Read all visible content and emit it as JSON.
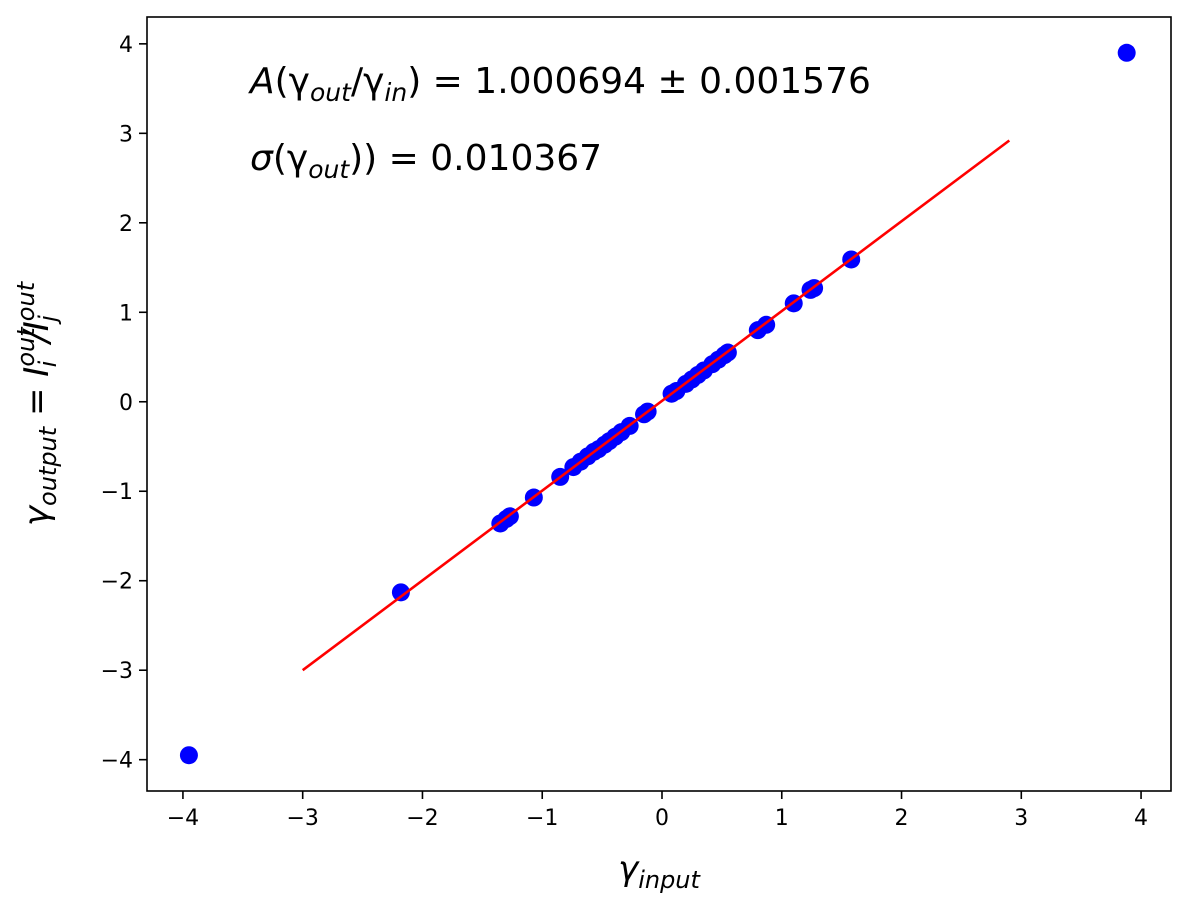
{
  "chart_data": {
    "type": "scatter",
    "xlabel": {
      "main": "γ",
      "sub": "input"
    },
    "ylabel": {
      "main": "γ",
      "sub": "output",
      "rest": " = I",
      "sup1": "out",
      "sub1": "i",
      "mid": "/I",
      "sup2": "out",
      "sub2": "j"
    },
    "xlim": [
      -4.3,
      4.25
    ],
    "ylim": [
      -4.35,
      4.3
    ],
    "xticks": [
      -4,
      -3,
      -2,
      -1,
      0,
      1,
      2,
      3,
      4
    ],
    "yticks": [
      -4,
      -3,
      -2,
      -1,
      0,
      1,
      2,
      3,
      4
    ],
    "xtick_labels": [
      "−4",
      "−3",
      "−2",
      "−1",
      "0",
      "1",
      "2",
      "3",
      "4"
    ],
    "ytick_labels": [
      "−4",
      "−3",
      "−2",
      "−1",
      "0",
      "1",
      "2",
      "3",
      "4"
    ],
    "grid": false,
    "annotations": {
      "line1": {
        "a": "A",
        "p1": "(γ",
        "s1": "out",
        "p2": "/γ",
        "s2": "in",
        "p3": ") = 1.000694 ± 0.001576"
      },
      "line2": {
        "sigma": "σ",
        "p1": "(γ",
        "s1": "out",
        "p2": ")) = 0.010367"
      }
    },
    "series": [
      {
        "type": "scatter",
        "color": "#0000ff",
        "points": [
          [
            -3.95,
            -3.95
          ],
          [
            -2.18,
            -2.13
          ],
          [
            -1.35,
            -1.36
          ],
          [
            -1.3,
            -1.31
          ],
          [
            -1.27,
            -1.28
          ],
          [
            -1.07,
            -1.07
          ],
          [
            -0.85,
            -0.84
          ],
          [
            -0.74,
            -0.73
          ],
          [
            -0.68,
            -0.67
          ],
          [
            -0.62,
            -0.61
          ],
          [
            -0.57,
            -0.56
          ],
          [
            -0.53,
            -0.53
          ],
          [
            -0.48,
            -0.48
          ],
          [
            -0.44,
            -0.44
          ],
          [
            -0.39,
            -0.39
          ],
          [
            -0.34,
            -0.34
          ],
          [
            -0.27,
            -0.27
          ],
          [
            -0.15,
            -0.14
          ],
          [
            -0.12,
            -0.11
          ],
          [
            0.08,
            0.09
          ],
          [
            0.12,
            0.12
          ],
          [
            0.2,
            0.2
          ],
          [
            0.25,
            0.25
          ],
          [
            0.3,
            0.3
          ],
          [
            0.35,
            0.35
          ],
          [
            0.42,
            0.42
          ],
          [
            0.47,
            0.47
          ],
          [
            0.52,
            0.52
          ],
          [
            0.55,
            0.55
          ],
          [
            0.8,
            0.8
          ],
          [
            0.87,
            0.86
          ],
          [
            1.1,
            1.1
          ],
          [
            1.24,
            1.25
          ],
          [
            1.27,
            1.27
          ],
          [
            1.58,
            1.59
          ],
          [
            3.88,
            3.9
          ]
        ]
      },
      {
        "type": "line",
        "color": "#ff0000",
        "x": [
          -3.0,
          2.9
        ],
        "y": [
          -3.0,
          2.92
        ]
      }
    ]
  }
}
